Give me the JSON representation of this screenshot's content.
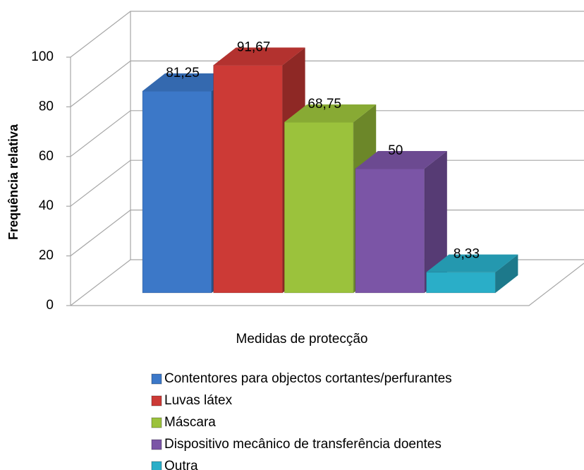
{
  "chart_data": {
    "type": "bar3d",
    "xlabel": "Medidas de protecção",
    "ylabel": "Frequência relativa",
    "ylim": [
      0,
      100
    ],
    "yticks": [
      0,
      20,
      40,
      60,
      80,
      100
    ],
    "grid": true,
    "series": [
      {
        "name": "Contentores para objectos cortantes/perfurantes",
        "color": "#3c78c8",
        "values": [
          81.25
        ],
        "value_labels": [
          "81,25"
        ]
      },
      {
        "name": "Luvas látex",
        "color": "#cc3a36",
        "values": [
          91.67
        ],
        "value_labels": [
          "91,67"
        ]
      },
      {
        "name": "Máscara",
        "color": "#9bc23c",
        "values": [
          68.75
        ],
        "value_labels": [
          "68,75"
        ]
      },
      {
        "name": "Dispositivo mecânico de transferência doentes",
        "color": "#7b55a6",
        "values": [
          50
        ],
        "value_labels": [
          "50"
        ]
      },
      {
        "name": "Outra",
        "color": "#2aaec8",
        "values": [
          8.33
        ],
        "value_labels": [
          "8,33"
        ]
      }
    ]
  }
}
